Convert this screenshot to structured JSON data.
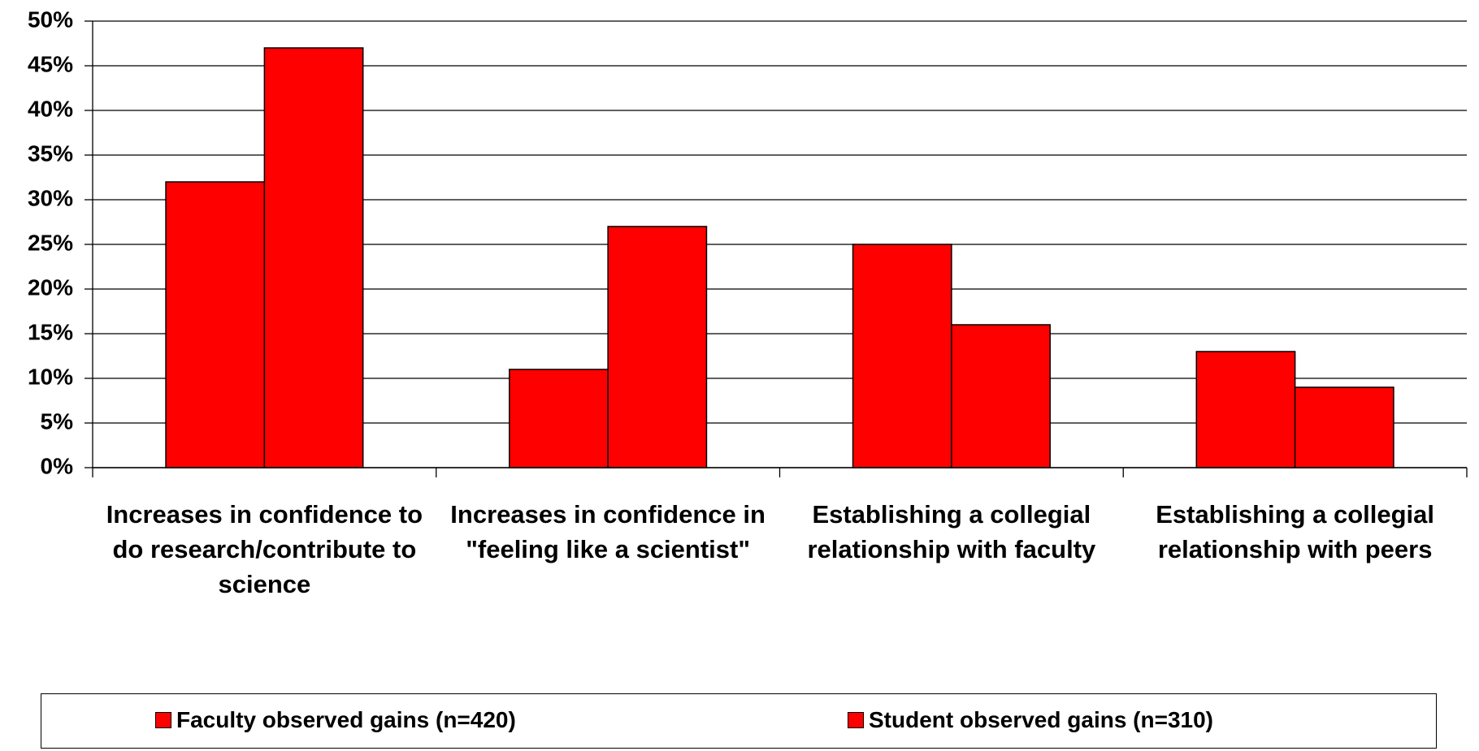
{
  "chart_data": {
    "type": "bar",
    "categories": [
      "Increases in confidence to do research/contribute to science",
      "Increases in confidence in \"feeling like a scientist\"",
      "Establishing a collegial relationship with faculty",
      "Establishing a collegial relationship with peers"
    ],
    "series": [
      {
        "name": "Faculty observed gains (n=420)",
        "color": "#ff0000",
        "values": [
          32,
          11,
          25,
          13
        ]
      },
      {
        "name": "Student observed gains (n=310)",
        "color": "#ff0000",
        "values": [
          47,
          27,
          16,
          9
        ]
      }
    ],
    "ylim": [
      0,
      50
    ],
    "yticks": [
      {
        "value": 0,
        "label": "0%"
      },
      {
        "value": 5,
        "label": "5%"
      },
      {
        "value": 10,
        "label": "10%"
      },
      {
        "value": 15,
        "label": "15%"
      },
      {
        "value": 20,
        "label": "20%"
      },
      {
        "value": 25,
        "label": "25%"
      },
      {
        "value": 30,
        "label": "30%"
      },
      {
        "value": 35,
        "label": "35%"
      },
      {
        "value": 40,
        "label": "40%"
      },
      {
        "value": 45,
        "label": "45%"
      },
      {
        "value": 50,
        "label": "50%"
      }
    ],
    "grid": true,
    "legend": "bottom"
  }
}
